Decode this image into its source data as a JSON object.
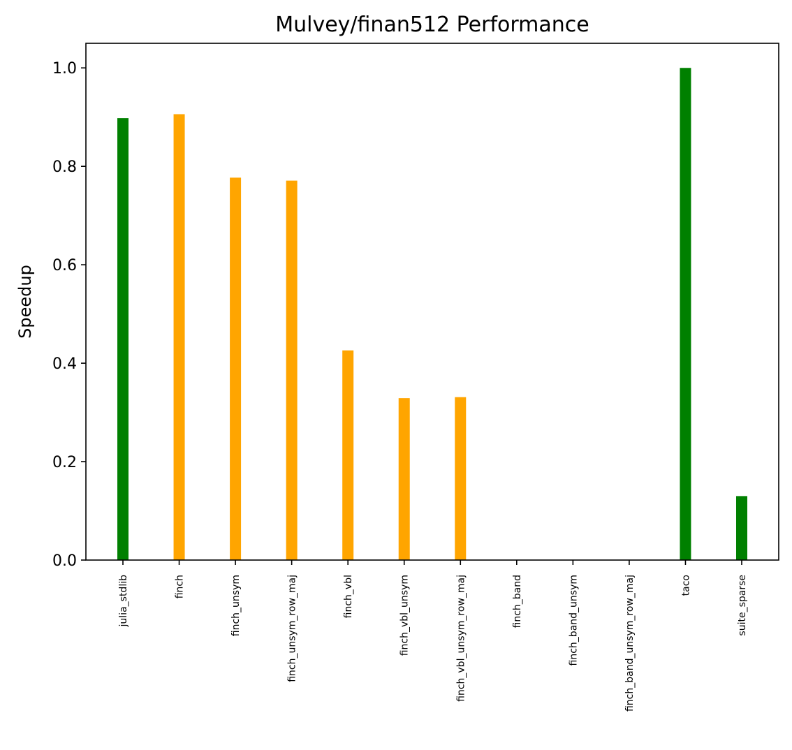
{
  "chart_data": {
    "type": "bar",
    "title": "Mulvey/finan512 Performance",
    "xlabel": "",
    "ylabel": "Speedup",
    "ylim": [
      0,
      1.05
    ],
    "yticks": [
      "0.0",
      "0.2",
      "0.4",
      "0.6",
      "0.8",
      "1.0"
    ],
    "grid": false,
    "legend": "none",
    "categories": [
      "julia_stdlib",
      "finch",
      "finch_unsym",
      "finch_unsym_row_maj",
      "finch_vbl",
      "finch_vbl_unsym",
      "finch_vbl_unsym_row_maj",
      "finch_band",
      "finch_band_unsym",
      "finch_band_unsym_row_maj",
      "taco",
      "suite_sparse"
    ],
    "values": [
      0.898,
      0.906,
      0.777,
      0.771,
      0.426,
      0.329,
      0.331,
      0,
      0,
      0,
      1.0,
      0.13
    ],
    "colors": [
      "#008000",
      "#ffa500",
      "#ffa500",
      "#ffa500",
      "#ffa500",
      "#ffa500",
      "#ffa500",
      "#ffa500",
      "#ffa500",
      "#ffa500",
      "#008000",
      "#008000"
    ]
  }
}
